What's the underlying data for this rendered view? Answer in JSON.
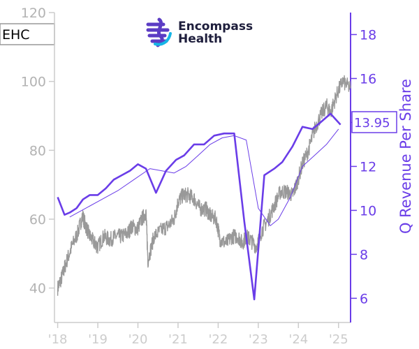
{
  "chart_data": {
    "type": "line",
    "ticker": "EHC",
    "logo": {
      "line1": "Encompass",
      "line2": "Health"
    },
    "ylabel_right": "Q Revenue Per Share",
    "last_value_label": "13.95",
    "x_ticks": [
      "'18",
      "'19",
      "'20",
      "'21",
      "'22",
      "'23",
      "'24",
      "'25"
    ],
    "x_range": [
      2017.92,
      2025.3
    ],
    "y_left": {
      "range": [
        30,
        120
      ],
      "ticks": [
        40,
        60,
        80,
        100,
        120
      ]
    },
    "y_right": {
      "range": [
        4.9,
        19
      ],
      "ticks": [
        6,
        8,
        10,
        12,
        14,
        16,
        18
      ]
    },
    "grid": false,
    "series": [
      {
        "axis": "left",
        "color": "#999999",
        "style": "noisy",
        "x": [
          2018.0,
          2018.1,
          2018.2,
          2018.35,
          2018.5,
          2018.62,
          2018.7,
          2018.8,
          2018.92,
          2019.0,
          2019.15,
          2019.3,
          2019.45,
          2019.6,
          2019.75,
          2019.85,
          2019.98,
          2020.1,
          2020.2,
          2020.25,
          2020.4,
          2020.6,
          2020.75,
          2020.9,
          2021.0,
          2021.12,
          2021.25,
          2021.4,
          2021.55,
          2021.7,
          2021.8,
          2021.95,
          2022.05,
          2022.2,
          2022.35,
          2022.5,
          2022.6,
          2022.7,
          2022.8,
          2022.95,
          2023.1,
          2023.25,
          2023.4,
          2023.55,
          2023.7,
          2023.85,
          2023.95,
          2024.1,
          2024.25,
          2024.4,
          2024.55,
          2024.7,
          2024.8,
          2024.95,
          2025.1,
          2025.3
        ],
        "values": [
          40,
          43,
          47,
          52,
          56,
          61,
          58,
          55,
          53,
          52,
          55,
          54,
          55,
          55,
          56,
          58,
          57,
          60,
          62,
          48,
          55,
          57,
          58,
          60,
          65,
          67,
          67,
          66,
          63,
          63,
          61,
          60,
          54,
          53,
          55,
          55,
          53,
          55,
          54,
          52,
          57,
          60,
          64,
          68,
          68,
          67,
          70,
          76,
          80,
          86,
          90,
          93,
          91,
          96,
          100,
          98
        ]
      },
      {
        "axis": "right",
        "color": "#6a3de8",
        "style": "thick",
        "x": [
          2018.0,
          2018.17,
          2018.3,
          2018.47,
          2018.63,
          2018.8,
          2019.0,
          2019.2,
          2019.4,
          2019.6,
          2019.8,
          2020.0,
          2020.2,
          2020.45,
          2020.7,
          2020.95,
          2021.15,
          2021.4,
          2021.65,
          2021.9,
          2022.15,
          2022.4,
          2022.65,
          2022.9,
          2023.15,
          2023.4,
          2023.6,
          2023.85,
          2024.1,
          2024.35,
          2024.55,
          2024.8,
          2025.05
        ],
        "values": [
          10.6,
          9.8,
          9.9,
          10.1,
          10.5,
          10.7,
          10.7,
          11.0,
          11.4,
          11.6,
          11.8,
          12.1,
          11.9,
          10.8,
          11.8,
          12.3,
          12.5,
          13.0,
          13.0,
          13.4,
          13.5,
          13.5,
          9.5,
          5.95,
          11.6,
          11.9,
          12.2,
          12.9,
          13.8,
          13.7,
          14.0,
          14.4,
          13.9
        ]
      },
      {
        "axis": "right",
        "color": "#6a3de8",
        "style": "thin",
        "x": [
          2018.3,
          2018.7,
          2019.1,
          2019.5,
          2019.9,
          2020.3,
          2020.6,
          2020.9,
          2021.2,
          2021.5,
          2021.8,
          2022.1,
          2022.4,
          2022.7,
          2023.0,
          2023.3,
          2023.5,
          2023.8,
          2024.1,
          2024.4,
          2024.7,
          2025.0
        ],
        "values": [
          9.7,
          10.1,
          10.5,
          10.9,
          11.4,
          11.9,
          11.8,
          11.7,
          12.0,
          12.5,
          13.0,
          13.3,
          13.4,
          13.2,
          10.1,
          9.3,
          9.6,
          10.6,
          12.0,
          12.5,
          13.0,
          13.7
        ]
      }
    ]
  }
}
